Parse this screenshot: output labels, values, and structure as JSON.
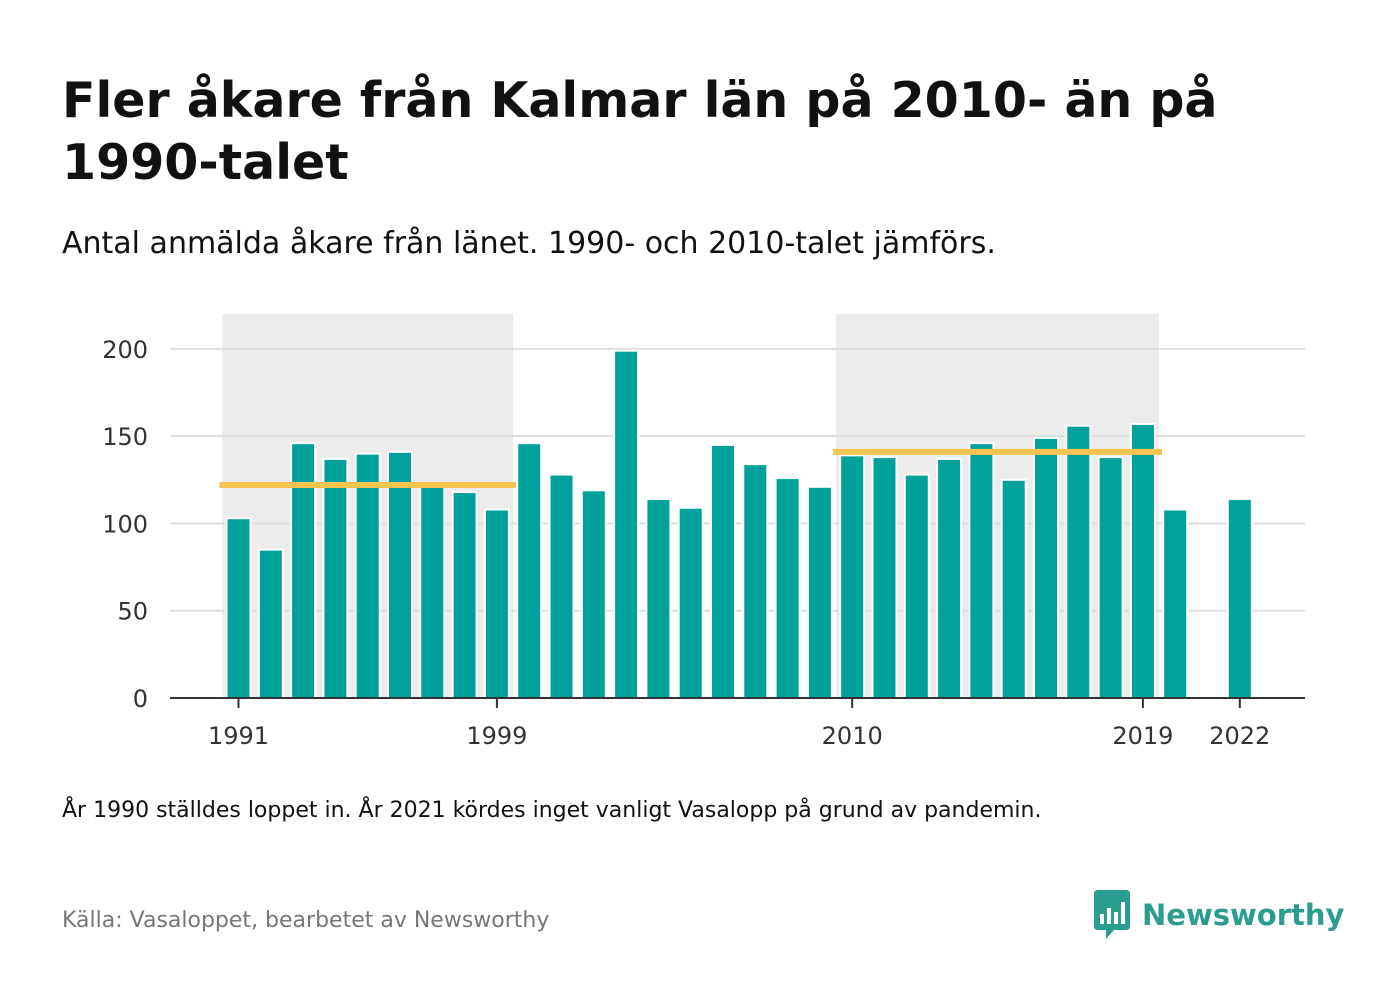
{
  "title": "Fler åkare från Kalmar län på 2010- än på 1990-talet",
  "subtitle": "Antal anmälda åkare från länet. 1990- och 2010-talet jämförs.",
  "note": "År 1990 ställdes loppet in. År 2021 kördes inget vanligt Vasalopp på grund av pandemin.",
  "source": "Källa: Vasaloppet, bearbetet av Newsworthy",
  "brand": {
    "name": "Newsworthy",
    "icon": "newsworthy-logo-icon"
  },
  "colors": {
    "bar": "#00a19a",
    "average": "#f7c44f",
    "highlight": "#ececec",
    "grid": "#dddddd",
    "axis": "#333333",
    "brand": "#2a9d8f"
  },
  "chart_data": {
    "type": "bar",
    "title": "Fler åkare från Kalmar län på 2010- än på 1990-talet",
    "xlabel": "",
    "ylabel": "",
    "ylim": [
      0,
      220
    ],
    "yticks": [
      0,
      50,
      100,
      150,
      200
    ],
    "xtick_labels": [
      "1991",
      "1999",
      "2010",
      "2019",
      "2022"
    ],
    "grid": true,
    "categories": [
      "1991",
      "1992",
      "1993",
      "1994",
      "1995",
      "1996",
      "1997",
      "1998",
      "1999",
      "2000",
      "2001",
      "2002",
      "2003",
      "2004",
      "2005",
      "2006",
      "2007",
      "2008",
      "2009",
      "2010",
      "2011",
      "2012",
      "2013",
      "2014",
      "2015",
      "2016",
      "2017",
      "2018",
      "2019",
      "2020",
      "2021",
      "2022"
    ],
    "values": [
      103,
      85,
      146,
      137,
      140,
      141,
      122,
      118,
      108,
      146,
      128,
      119,
      199,
      114,
      109,
      145,
      134,
      126,
      121,
      139,
      138,
      128,
      137,
      146,
      125,
      149,
      156,
      138,
      157,
      108,
      null,
      114
    ],
    "highlight_periods": [
      {
        "from": "1991",
        "to": "1999",
        "average": 122
      },
      {
        "from": "2010",
        "to": "2019",
        "average": 141
      }
    ]
  }
}
